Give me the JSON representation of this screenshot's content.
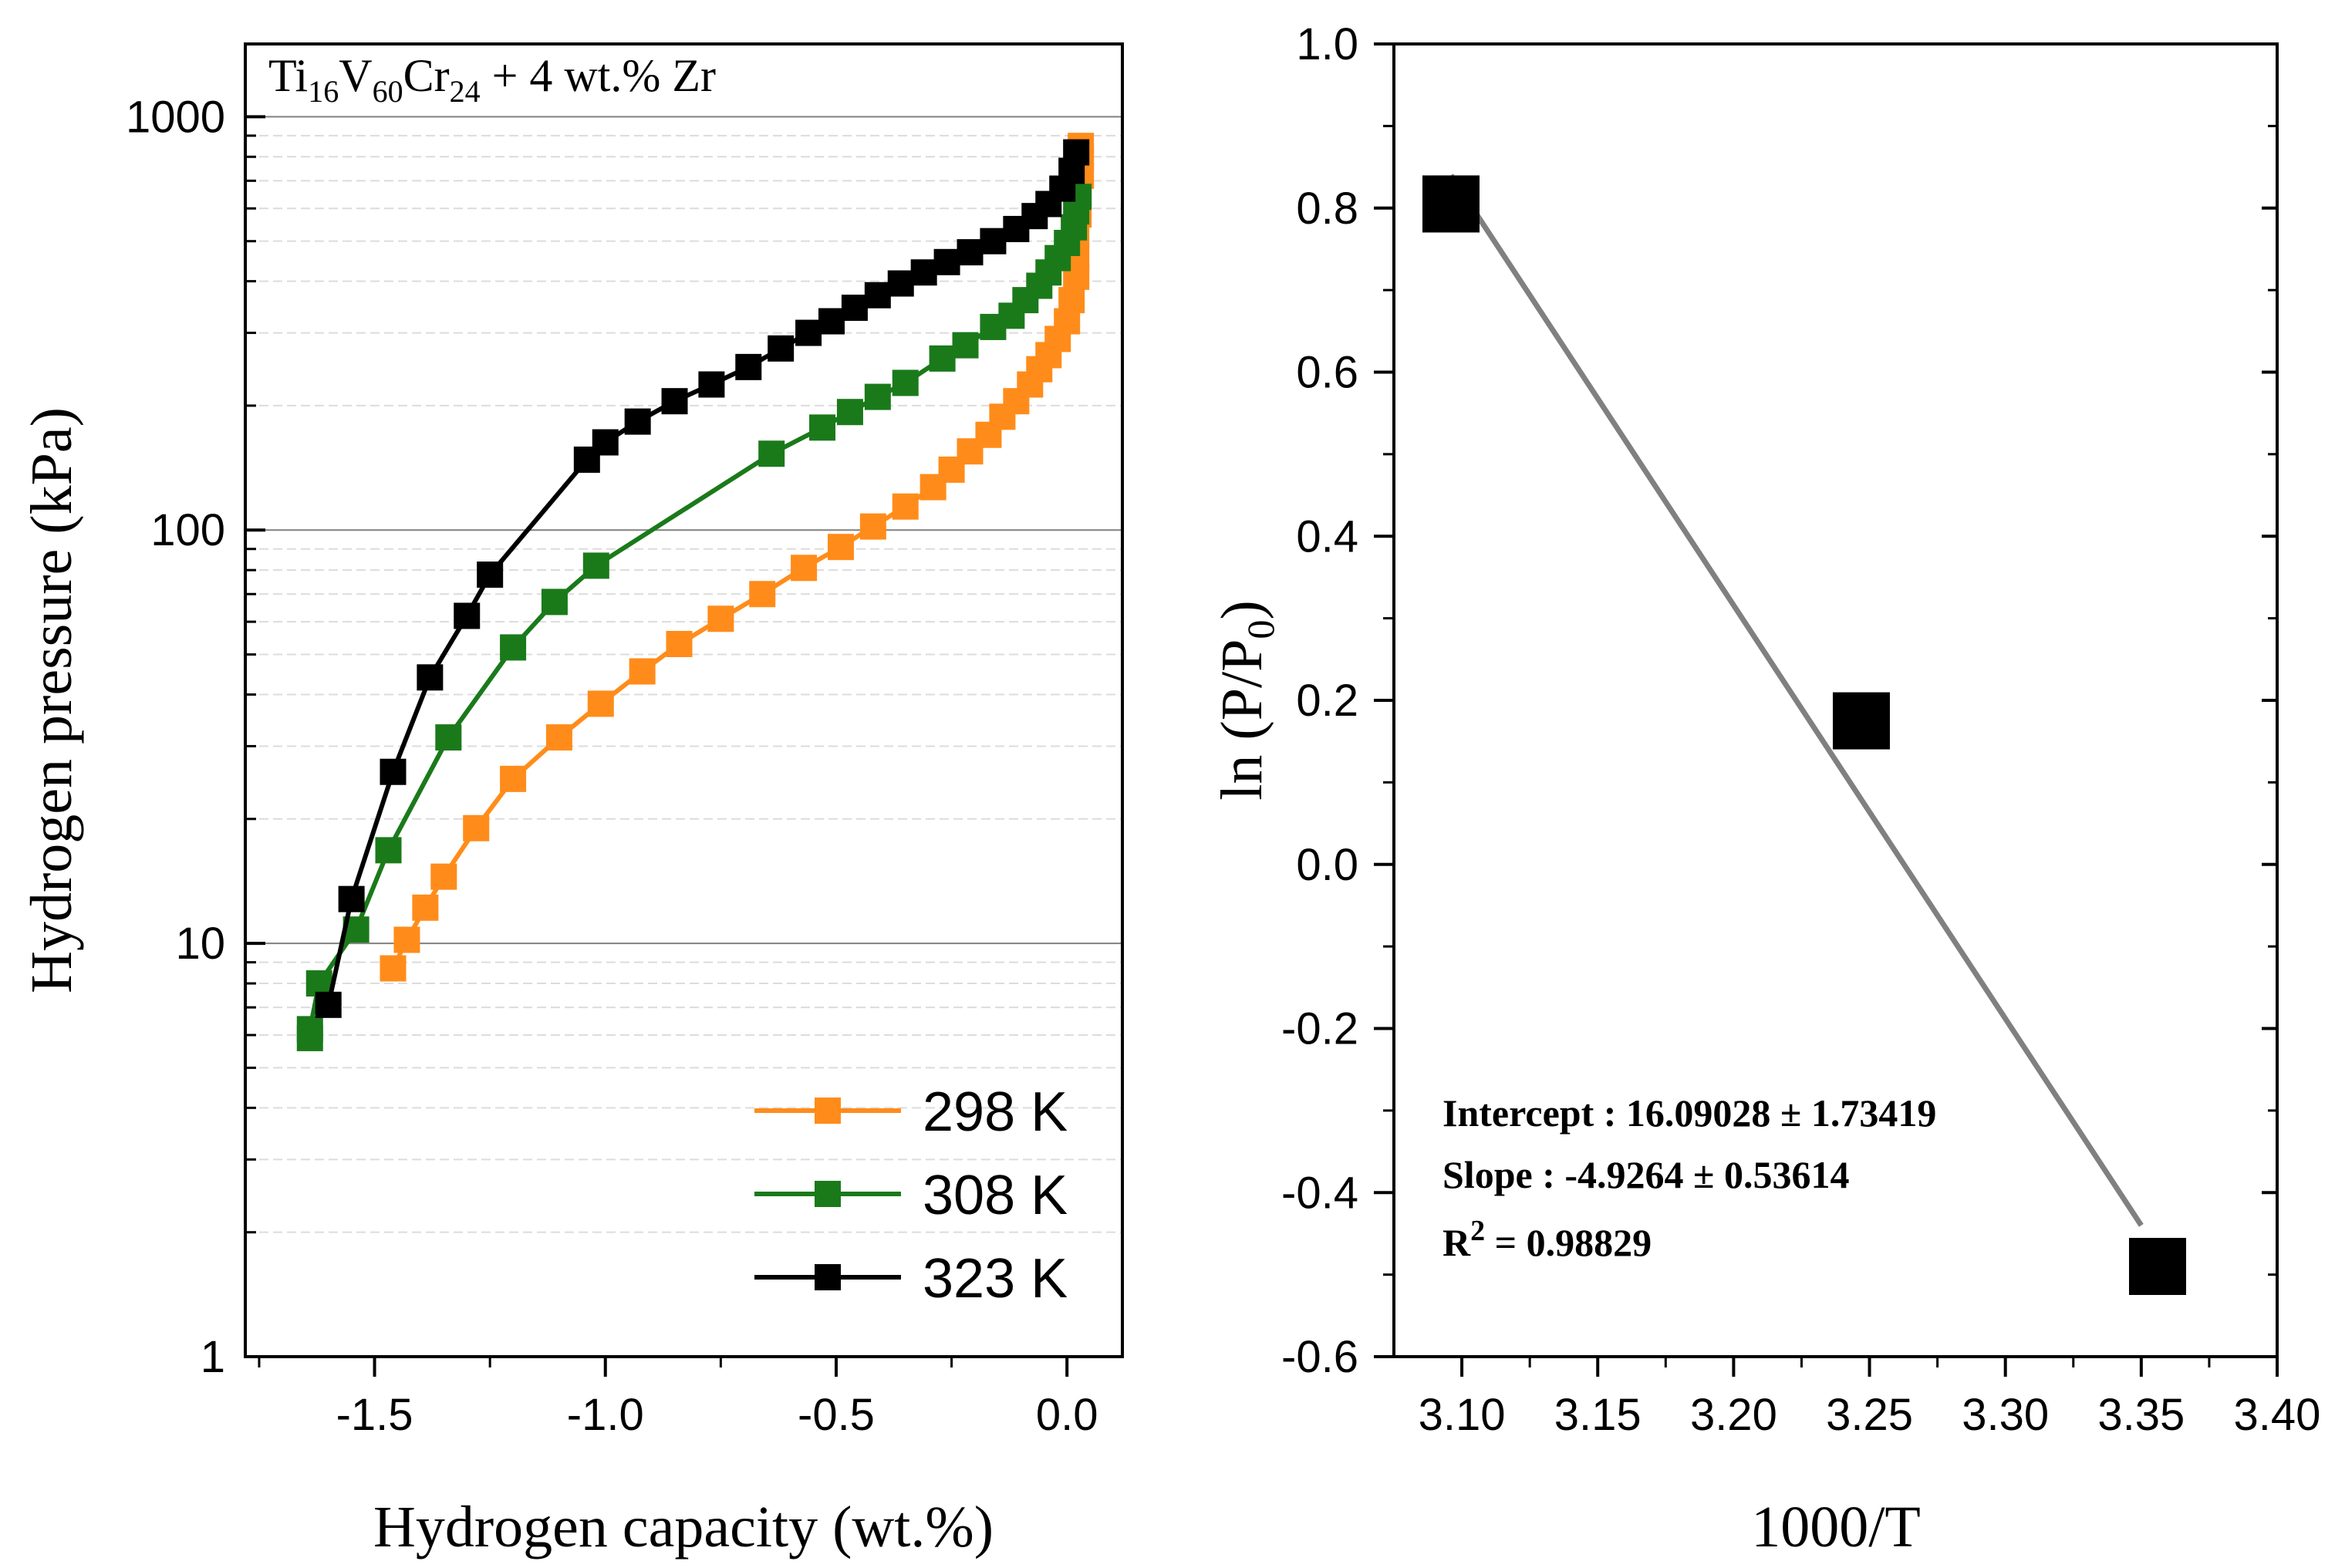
{
  "chart_data": [
    {
      "type": "line",
      "title": "Ti16V60Cr24 + 4 wt.% Zr",
      "title_parts": {
        "t1": "Ti",
        "s1": "16",
        "t2": "V",
        "s2": "60",
        "t3": "Cr",
        "s3": "24",
        "t4": " + 4 wt.% Zr"
      },
      "xlabel": "Hydrogen capacity (wt.%)",
      "ylabel": "Hydrogen pressure (kPa)",
      "yscale": "log",
      "xlim": [
        -1.78,
        0.12
      ],
      "ylim": [
        1,
        1500
      ],
      "xticks": [
        -1.5,
        -1.0,
        -0.5,
        0.0
      ],
      "xtick_labels": [
        "-1.5",
        "-1.0",
        "-0.5",
        "0.0"
      ],
      "yticks": [
        1,
        10,
        100,
        1000
      ],
      "ytick_labels": [
        "1",
        "10",
        "100",
        "1000"
      ],
      "grid": true,
      "legend_position": "bottom-right",
      "series": [
        {
          "name": "298 K",
          "color": "#ff8c1a",
          "x": [
            -1.46,
            -1.43,
            -1.39,
            -1.35,
            -1.28,
            -1.2,
            -1.1,
            -1.01,
            -0.92,
            -0.84,
            -0.75,
            -0.66,
            -0.57,
            -0.49,
            -0.42,
            -0.35,
            -0.29,
            -0.25,
            -0.21,
            -0.17,
            -0.14,
            -0.11,
            -0.08,
            -0.06,
            -0.04,
            -0.02,
            0.0,
            0.01,
            0.02,
            0.02,
            0.02,
            0.025,
            0.025,
            0.03,
            0.03,
            0.03
          ],
          "y": [
            8.7,
            10.2,
            12.2,
            14.5,
            19,
            25,
            31.5,
            38,
            45.5,
            53,
            61,
            70,
            81,
            91,
            102,
            114,
            127,
            140,
            155,
            170,
            188,
            205,
            225,
            245,
            265,
            290,
            320,
            360,
            410,
            460,
            520,
            580,
            650,
            720,
            790,
            850
          ]
        },
        {
          "name": "308 K",
          "color": "#1a7a1a",
          "x": [
            -1.64,
            -1.64,
            -1.62,
            -1.54,
            -1.47,
            -1.34,
            -1.2,
            -1.11,
            -1.02,
            -0.64,
            -0.53,
            -0.47,
            -0.41,
            -0.35,
            -0.27,
            -0.22,
            -0.16,
            -0.12,
            -0.09,
            -0.06,
            -0.04,
            -0.02,
            0.0,
            0.015,
            0.02,
            0.025
          ],
          "y": [
            5.9,
            6.2,
            8,
            10.8,
            16.8,
            31.5,
            52,
            67,
            82,
            153,
            177,
            193,
            210,
            227,
            260,
            280,
            310,
            330,
            360,
            390,
            420,
            455,
            495,
            540,
            590,
            640
          ]
        },
        {
          "name": "323 K",
          "color": "#000000",
          "x": [
            -1.6,
            -1.55,
            -1.46,
            -1.38,
            -1.3,
            -1.25,
            -1.04,
            -1.0,
            -0.93,
            -0.85,
            -0.77,
            -0.69,
            -0.62,
            -0.56,
            -0.51,
            -0.46,
            -0.41,
            -0.36,
            -0.31,
            -0.26,
            -0.21,
            -0.16,
            -0.11,
            -0.07,
            -0.04,
            -0.01,
            0.01,
            0.02
          ],
          "y": [
            7.1,
            12.8,
            26,
            44,
            62,
            78,
            148,
            163,
            183,
            205,
            225,
            248,
            275,
            300,
            320,
            345,
            370,
            395,
            420,
            445,
            470,
            500,
            535,
            575,
            615,
            670,
            740,
            820
          ]
        }
      ]
    },
    {
      "type": "scatter",
      "title": "",
      "xlabel": "1000/T",
      "ylabel_parts": {
        "pre": "ln (P/P",
        "sub": "0",
        "post": ")"
      },
      "xlim": [
        3.075,
        3.4
      ],
      "ylim": [
        -0.6,
        1.0
      ],
      "xticks": [
        3.1,
        3.15,
        3.2,
        3.25,
        3.3,
        3.35,
        3.4
      ],
      "xtick_labels": [
        "3.10",
        "3.15",
        "3.20",
        "3.25",
        "3.30",
        "3.35",
        "3.40"
      ],
      "yticks": [
        -0.6,
        -0.4,
        -0.2,
        0.0,
        0.2,
        0.4,
        0.6,
        0.8,
        1.0
      ],
      "ytick_labels": [
        "-0.6",
        "-0.4",
        "-0.2",
        "0.0",
        "0.2",
        "0.4",
        "0.6",
        "0.8",
        "1.0"
      ],
      "grid": false,
      "series": [
        {
          "name": "data",
          "color": "#000000",
          "x": [
            3.096,
            3.247,
            3.356
          ],
          "y": [
            0.805,
            0.175,
            -0.49
          ]
        }
      ],
      "fit": {
        "color": "#808080",
        "x": [
          3.096,
          3.35
        ],
        "y": [
          0.84,
          -0.44
        ]
      },
      "annotations": {
        "intercept": "Intercept : 16.09028 ± 1.73419",
        "slope": "Slope : -4.9264 ± 0.53614",
        "r2_label": "R",
        "r2_sup": "2",
        "r2_value": " = 0.98829"
      }
    }
  ]
}
